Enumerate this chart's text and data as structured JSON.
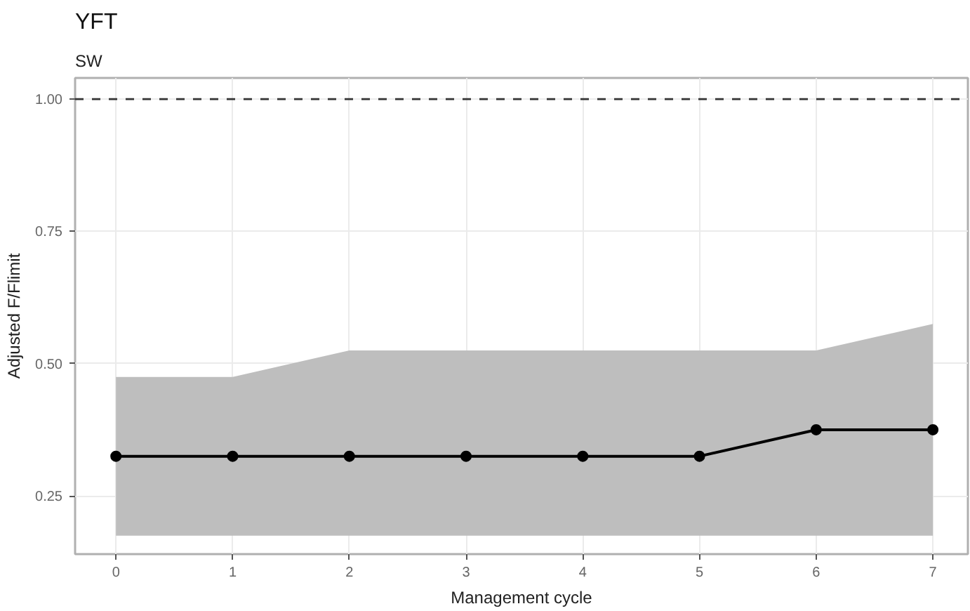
{
  "chart_data": {
    "type": "line",
    "title": "YFT",
    "subtitle": "SW",
    "xlabel": "Management cycle",
    "ylabel": "Adjusted F/Flimit",
    "x": [
      0,
      1,
      2,
      3,
      4,
      5,
      6,
      7
    ],
    "series": [
      {
        "color": "#000000",
        "values": [
          0.325,
          0.325,
          0.325,
          0.325,
          0.325,
          0.325,
          0.375,
          0.375
        ],
        "lower": [
          0.175,
          0.175,
          0.175,
          0.175,
          0.175,
          0.175,
          0.175,
          0.175
        ],
        "upper": [
          0.475,
          0.475,
          0.525,
          0.525,
          0.525,
          0.525,
          0.525,
          0.575
        ]
      }
    ],
    "xlim": [
      -0.35,
      7.3
    ],
    "ylim": [
      0.14,
      1.04
    ],
    "xticks": [
      0,
      1,
      2,
      3,
      4,
      5,
      6,
      7
    ],
    "yticks": [
      {
        "value": 0.25,
        "label": "0.25"
      },
      {
        "value": 0.5,
        "label": "0.50"
      },
      {
        "value": 0.75,
        "label": "0.75"
      },
      {
        "value": 1.0,
        "label": "1.00"
      }
    ],
    "ref_lines": [
      {
        "axis": "y",
        "value": 1.0,
        "label": null,
        "color": "#333333",
        "line_style": "dashed"
      }
    ],
    "grid": true,
    "marker": "circle",
    "line_style": "solid"
  }
}
